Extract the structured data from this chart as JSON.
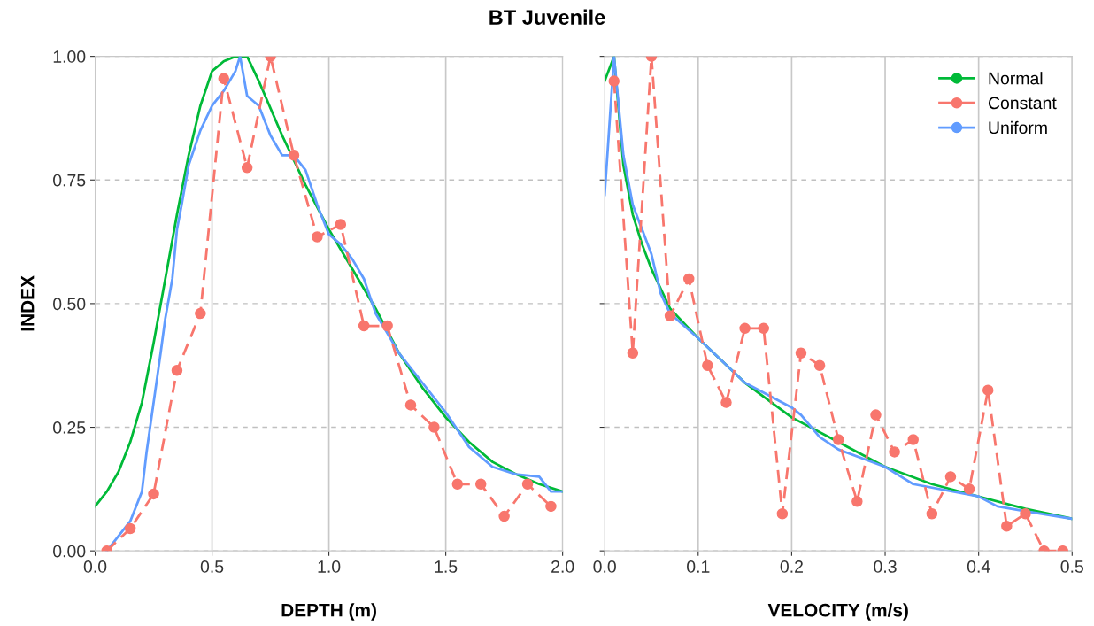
{
  "chart_data": [
    {
      "type": "line",
      "title": "BT Juvenile",
      "xlabel": "DEPTH (m)",
      "ylabel": "INDEX",
      "xlim": [
        0,
        2
      ],
      "xticks": [
        {
          "value": 0,
          "label": "0.0"
        },
        {
          "value": 0.5,
          "label": "0.5"
        },
        {
          "value": 1,
          "label": "1.0"
        },
        {
          "value": 1.5,
          "label": "1.5"
        },
        {
          "value": 2,
          "label": "2.0"
        }
      ],
      "ylim": [
        0,
        1
      ],
      "yticks": [
        {
          "value": 0,
          "label": "0.00"
        },
        {
          "value": 0.25,
          "label": "0.25"
        },
        {
          "value": 0.5,
          "label": "0.50"
        },
        {
          "value": 0.75,
          "label": "0.75"
        },
        {
          "value": 1,
          "label": "1.00"
        }
      ],
      "grid": true,
      "series": [
        {
          "color": "#00ba38",
          "marker": "none",
          "line_style": "solid",
          "x": [
            0,
            0.05,
            0.1,
            0.15,
            0.2,
            0.25,
            0.3,
            0.35,
            0.4,
            0.45,
            0.5,
            0.55,
            0.6,
            0.65,
            0.7,
            0.8,
            0.9,
            1.0,
            1.1,
            1.2,
            1.3,
            1.4,
            1.5,
            1.6,
            1.7,
            1.8,
            1.9,
            2.0
          ],
          "values": [
            0.09,
            0.12,
            0.16,
            0.22,
            0.3,
            0.42,
            0.55,
            0.68,
            0.8,
            0.9,
            0.97,
            0.99,
            1.0,
            1.0,
            0.95,
            0.84,
            0.74,
            0.65,
            0.57,
            0.49,
            0.4,
            0.33,
            0.27,
            0.22,
            0.18,
            0.155,
            0.135,
            0.12
          ]
        },
        {
          "color": "#f8766d",
          "marker": "circle",
          "line_style": "dashed",
          "x": [
            0.05,
            0.15,
            0.25,
            0.35,
            0.45,
            0.55,
            0.65,
            0.75,
            0.85,
            0.95,
            1.05,
            1.15,
            1.25,
            1.35,
            1.45,
            1.55,
            1.65,
            1.75,
            1.85,
            1.95
          ],
          "values": [
            0.0,
            0.045,
            0.115,
            0.365,
            0.48,
            0.955,
            0.775,
            1.0,
            0.8,
            0.635,
            0.66,
            0.455,
            0.455,
            0.295,
            0.25,
            0.135,
            0.135,
            0.07,
            0.135,
            0.09
          ]
        },
        {
          "color": "#619cff",
          "marker": "none",
          "line_style": "solid",
          "x": [
            0.05,
            0.1,
            0.15,
            0.2,
            0.22,
            0.25,
            0.28,
            0.3,
            0.33,
            0.35,
            0.37,
            0.4,
            0.45,
            0.5,
            0.55,
            0.6,
            0.62,
            0.65,
            0.7,
            0.75,
            0.8,
            0.85,
            0.9,
            0.95,
            1.0,
            1.05,
            1.1,
            1.15,
            1.2,
            1.25,
            1.3,
            1.35,
            1.4,
            1.5,
            1.6,
            1.7,
            1.8,
            1.9,
            1.95,
            2.0
          ],
          "values": [
            0.0,
            0.03,
            0.06,
            0.12,
            0.2,
            0.3,
            0.4,
            0.47,
            0.55,
            0.65,
            0.7,
            0.78,
            0.85,
            0.9,
            0.93,
            0.97,
            1.0,
            0.92,
            0.9,
            0.84,
            0.8,
            0.8,
            0.77,
            0.7,
            0.64,
            0.62,
            0.59,
            0.55,
            0.48,
            0.44,
            0.4,
            0.37,
            0.34,
            0.28,
            0.21,
            0.17,
            0.155,
            0.15,
            0.12,
            0.12
          ]
        }
      ]
    },
    {
      "type": "line",
      "xlabel": "VELOCITY (m/s)",
      "xlim": [
        0,
        0.5
      ],
      "xticks": [
        {
          "value": 0,
          "label": "0.0"
        },
        0.1,
        0.2,
        0.3,
        0.4,
        0.5
      ],
      "ylim": [
        0,
        1
      ],
      "yticks": [
        0,
        0.25,
        0.5,
        0.75,
        1
      ],
      "tick_labels": "x",
      "grid": true,
      "legend": "top right",
      "series": [
        {
          "name": "Normal",
          "color": "#00ba38",
          "marker": "none",
          "line_style": "solid",
          "x": [
            0.0,
            0.01,
            0.02,
            0.03,
            0.04,
            0.05,
            0.07,
            0.1,
            0.15,
            0.2,
            0.25,
            0.3,
            0.35,
            0.4,
            0.45,
            0.5
          ],
          "values": [
            0.95,
            1.0,
            0.78,
            0.68,
            0.62,
            0.57,
            0.49,
            0.43,
            0.34,
            0.27,
            0.22,
            0.17,
            0.135,
            0.11,
            0.085,
            0.065
          ]
        },
        {
          "name": "Constant",
          "color": "#f8766d",
          "marker": "circle",
          "line_style": "dashed",
          "x": [
            0.01,
            0.03,
            0.05,
            0.07,
            0.09,
            0.11,
            0.13,
            0.15,
            0.17,
            0.19,
            0.21,
            0.23,
            0.25,
            0.27,
            0.29,
            0.31,
            0.33,
            0.35,
            0.37,
            0.39,
            0.41,
            0.43,
            0.45,
            0.47,
            0.49
          ],
          "values": [
            0.95,
            0.4,
            1.0,
            0.475,
            0.55,
            0.375,
            0.3,
            0.45,
            0.45,
            0.075,
            0.4,
            0.375,
            0.225,
            0.1,
            0.275,
            0.2,
            0.225,
            0.075,
            0.15,
            0.125,
            0.325,
            0.05,
            0.075,
            0.0,
            0.0
          ]
        },
        {
          "name": "Uniform",
          "color": "#619cff",
          "marker": "none",
          "line_style": "solid",
          "x": [
            0.0,
            0.01,
            0.02,
            0.03,
            0.04,
            0.05,
            0.06,
            0.07,
            0.1,
            0.15,
            0.2,
            0.21,
            0.23,
            0.25,
            0.3,
            0.33,
            0.4,
            0.42,
            0.45,
            0.5
          ],
          "values": [
            0.72,
            1.0,
            0.8,
            0.7,
            0.65,
            0.6,
            0.52,
            0.48,
            0.43,
            0.34,
            0.29,
            0.275,
            0.23,
            0.205,
            0.17,
            0.135,
            0.11,
            0.09,
            0.08,
            0.065
          ]
        }
      ]
    }
  ]
}
